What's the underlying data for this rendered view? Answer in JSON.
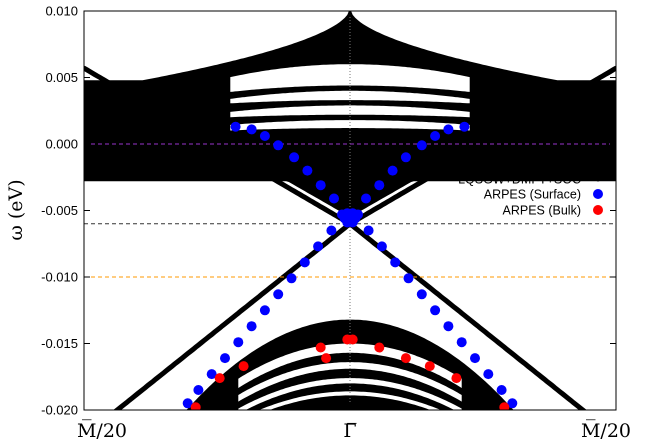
{
  "chart_data": {
    "type": "scatter",
    "title": "",
    "xlabel": "",
    "ylabel": "ω (eV)",
    "ylim": [
      -0.02,
      0.01
    ],
    "xlim": [
      -1,
      1
    ],
    "y_ticks": [
      0.01,
      0.005,
      0.0,
      -0.005,
      -0.01,
      -0.015,
      -0.02
    ],
    "y_tick_labels": [
      "0.010",
      "0.005",
      "0.000",
      "-0.005",
      "-0.010",
      "-0.015",
      "-0.020"
    ],
    "x_ticks": [
      -1,
      0,
      1
    ],
    "x_tick_labels": [
      "M̅/20",
      "Γ̅",
      "M̅/20"
    ],
    "grid": false,
    "legend_position": "right",
    "reference_lines": [
      {
        "y": 0.0,
        "color": "#9933cc",
        "style": "dashed"
      },
      {
        "y": -0.006,
        "color": "#333333",
        "style": "dashed"
      },
      {
        "y": -0.01,
        "color": "#ff9900",
        "style": "dashed"
      },
      {
        "x": 0,
        "color": "#777777",
        "style": "dotted"
      }
    ],
    "series": [
      {
        "name": "LQSGW+DMFT+SOC",
        "color": "#000000",
        "kind": "band_structure",
        "dirac_point": -0.006
      },
      {
        "name": "ARPES (Surface)",
        "color": "#0000ff",
        "points": [
          [
            -0.43,
            0.0013
          ],
          [
            -0.37,
            0.0011
          ],
          [
            -0.32,
            0.0006
          ],
          [
            -0.27,
            -0.0001
          ],
          [
            -0.21,
            -0.001
          ],
          [
            -0.16,
            -0.002
          ],
          [
            -0.11,
            -0.0031
          ],
          [
            -0.06,
            -0.0041
          ],
          [
            -0.01,
            -0.0052
          ],
          [
            0.01,
            -0.0052
          ],
          [
            0.06,
            -0.0041
          ],
          [
            0.11,
            -0.0031
          ],
          [
            0.16,
            -0.002
          ],
          [
            0.21,
            -0.001
          ],
          [
            0.27,
            -0.0001
          ],
          [
            0.32,
            0.0006
          ],
          [
            0.37,
            0.0011
          ],
          [
            0.43,
            0.0013
          ],
          [
            -0.07,
            -0.0065
          ],
          [
            -0.12,
            -0.0077
          ],
          [
            -0.17,
            -0.0089
          ],
          [
            -0.22,
            -0.0101
          ],
          [
            -0.27,
            -0.0113
          ],
          [
            -0.32,
            -0.0125
          ],
          [
            -0.37,
            -0.0137
          ],
          [
            -0.42,
            -0.0149
          ],
          [
            -0.47,
            -0.0161
          ],
          [
            -0.52,
            -0.0173
          ],
          [
            -0.57,
            -0.0185
          ],
          [
            -0.61,
            -0.0195
          ],
          [
            0.07,
            -0.0065
          ],
          [
            0.12,
            -0.0077
          ],
          [
            0.17,
            -0.0089
          ],
          [
            0.22,
            -0.0101
          ],
          [
            0.27,
            -0.0113
          ],
          [
            0.32,
            -0.0125
          ],
          [
            0.37,
            -0.0137
          ],
          [
            0.42,
            -0.0149
          ],
          [
            0.47,
            -0.0161
          ],
          [
            0.52,
            -0.0173
          ],
          [
            0.57,
            -0.0185
          ],
          [
            0.61,
            -0.0195
          ],
          [
            -0.03,
            -0.0053
          ],
          [
            0.03,
            -0.0053
          ],
          [
            -0.02,
            -0.0056
          ],
          [
            0.02,
            -0.0056
          ],
          [
            -0.01,
            -0.0059
          ],
          [
            0.01,
            -0.0059
          ],
          [
            0.0,
            -0.0054
          ]
        ]
      },
      {
        "name": "ARPES (Bulk)",
        "color": "#ff0000",
        "points": [
          [
            -0.58,
            -0.0198
          ],
          [
            -0.49,
            -0.0176
          ],
          [
            -0.4,
            -0.0167
          ],
          [
            -0.09,
            -0.0161
          ],
          [
            -0.11,
            -0.0153
          ],
          [
            -0.01,
            -0.0147
          ],
          [
            0.01,
            -0.0147
          ],
          [
            0.11,
            -0.0153
          ],
          [
            0.21,
            -0.0161
          ],
          [
            0.3,
            -0.0167
          ],
          [
            0.4,
            -0.0176
          ],
          [
            0.58,
            -0.0198
          ]
        ]
      }
    ]
  }
}
